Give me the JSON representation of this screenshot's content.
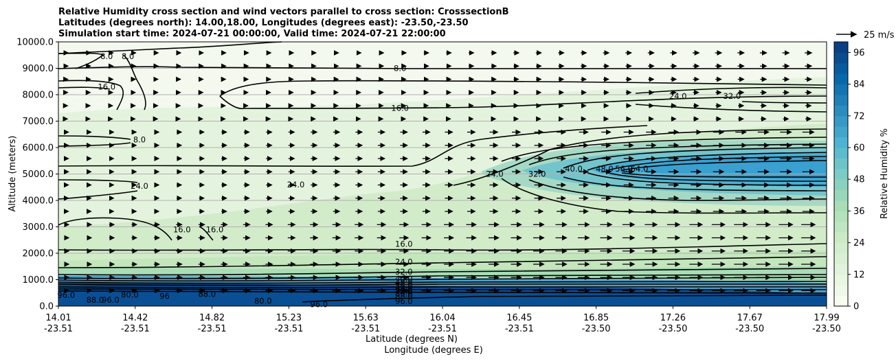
{
  "chart_data": {
    "type": "heatmap",
    "title_lines": [
      "Relative Humidity cross section and wind vectors parallel to cross section: CrosssectionB",
      "Latitudes (degrees north): 14.00,18.00, Longitudes (degrees east): -23.50,-23.50",
      "Simulation start time: 2024-07-21 00:00:00, Valid time: 2024-07-21 22:00:00"
    ],
    "ylabel": "Altitude (meters)",
    "xlabel_1": "Latitude (degrees N)",
    "xlabel_2": "Longitude (degrees E)",
    "ylim": [
      0,
      10000
    ],
    "yticks": [
      "0.0",
      "1000.0",
      "2000.0",
      "3000.0",
      "4000.0",
      "5000.0",
      "6000.0",
      "7000.0",
      "8000.0",
      "9000.0",
      "10000.0"
    ],
    "x_ticks": [
      {
        "lat": "14.01",
        "lon": "-23.51"
      },
      {
        "lat": "14.42",
        "lon": "-23.51"
      },
      {
        "lat": "14.82",
        "lon": "-23.51"
      },
      {
        "lat": "15.23",
        "lon": "-23.51"
      },
      {
        "lat": "15.63",
        "lon": "-23.51"
      },
      {
        "lat": "16.04",
        "lon": "-23.51"
      },
      {
        "lat": "16.45",
        "lon": "-23.51"
      },
      {
        "lat": "16.85",
        "lon": "-23.50"
      },
      {
        "lat": "17.26",
        "lon": "-23.50"
      },
      {
        "lat": "17.67",
        "lon": "-23.50"
      },
      {
        "lat": "17.99",
        "lon": "-23.50"
      }
    ],
    "colorbar": {
      "label": "Relative Humidity %",
      "ticks": [
        "0",
        "12",
        "24",
        "36",
        "48",
        "60",
        "72",
        "84",
        "96"
      ],
      "range": [
        0,
        100
      ],
      "levels": 25,
      "colors": [
        "#f7fcf0",
        "#e0f3db",
        "#ccebc5",
        "#a8ddb5",
        "#7bccc4",
        "#4eb3d3",
        "#2b8cbe",
        "#0868ac",
        "#084081"
      ]
    },
    "quiver_key": "25 m/s",
    "grid": "horizontal",
    "contour_labels": [
      {
        "text": "8.0",
        "lat": 14.26,
        "alt": 9450
      },
      {
        "text": "8.0",
        "lat": 14.37,
        "alt": 9450
      },
      {
        "text": "8.0",
        "lat": 15.78,
        "alt": 9000
      },
      {
        "text": "16.0",
        "lat": 14.26,
        "alt": 8300
      },
      {
        "text": "16.0",
        "lat": 15.78,
        "alt": 7500
      },
      {
        "text": "8.0",
        "lat": 14.43,
        "alt": 6300
      },
      {
        "text": "24.0",
        "lat": 14.43,
        "alt": 4550
      },
      {
        "text": "24.0",
        "lat": 15.24,
        "alt": 4600
      },
      {
        "text": "24.0",
        "lat": 17.22,
        "alt": 7950
      },
      {
        "text": "32.0",
        "lat": 17.5,
        "alt": 7950
      },
      {
        "text": "24.0",
        "lat": 16.27,
        "alt": 5000
      },
      {
        "text": "32.0",
        "lat": 16.49,
        "alt": 5000
      },
      {
        "text": "40.0",
        "lat": 16.68,
        "alt": 5200
      },
      {
        "text": "48.0",
        "lat": 16.84,
        "alt": 5200
      },
      {
        "text": "56.0",
        "lat": 16.94,
        "alt": 5200
      },
      {
        "text": "64.0",
        "lat": 17.02,
        "alt": 5200
      },
      {
        "text": "16.0",
        "lat": 14.65,
        "alt": 2900
      },
      {
        "text": "16.0",
        "lat": 14.82,
        "alt": 2900
      },
      {
        "text": "16.0",
        "lat": 15.8,
        "alt": 2350
      },
      {
        "text": "24.0",
        "lat": 15.8,
        "alt": 1670
      },
      {
        "text": "32.0",
        "lat": 15.8,
        "alt": 1300
      },
      {
        "text": "40.0",
        "lat": 15.8,
        "alt": 1040
      },
      {
        "text": "48.0",
        "lat": 15.8,
        "alt": 890
      },
      {
        "text": "56.0",
        "lat": 15.8,
        "alt": 770
      },
      {
        "text": "64.0",
        "lat": 15.8,
        "alt": 660
      },
      {
        "text": "72.0",
        "lat": 15.8,
        "alt": 560
      },
      {
        "text": "80.0",
        "lat": 15.8,
        "alt": 470
      },
      {
        "text": "88.0",
        "lat": 15.8,
        "alt": 380
      },
      {
        "text": "96.0",
        "lat": 15.8,
        "alt": 180
      },
      {
        "text": "96.0",
        "lat": 14.05,
        "alt": 420
      },
      {
        "text": "88.0",
        "lat": 14.2,
        "alt": 230
      },
      {
        "text": "96.0",
        "lat": 14.28,
        "alt": 230
      },
      {
        "text": "80.0",
        "lat": 14.38,
        "alt": 430
      },
      {
        "text": "96",
        "lat": 14.56,
        "alt": 380
      },
      {
        "text": "88.0",
        "lat": 14.78,
        "alt": 450
      },
      {
        "text": "80.0",
        "lat": 15.07,
        "alt": 200
      },
      {
        "text": "96.0",
        "lat": 15.36,
        "alt": 60
      }
    ]
  }
}
